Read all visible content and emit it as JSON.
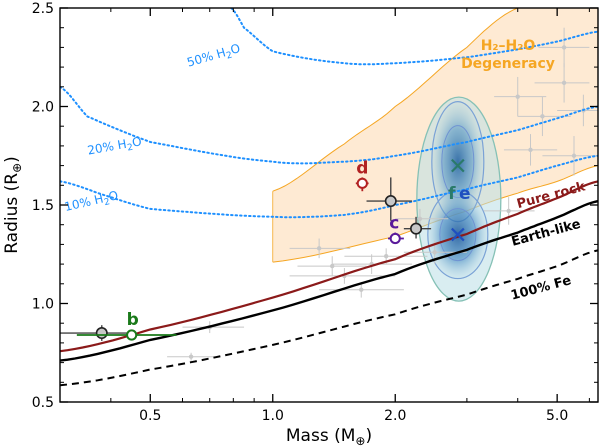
{
  "chart_data": {
    "type": "scatter",
    "xscale": "log",
    "xlim": [
      0.3,
      6.3
    ],
    "ylim": [
      0.5,
      2.5
    ],
    "xlabel": "Mass (M",
    "xlabel_sub": "⊕",
    "xlabel_end": ")",
    "ylabel": "Radius (R",
    "ylabel_sub": "⊕",
    "ylabel_end": ")",
    "xticks": [
      {
        "value": 0.5,
        "label": "0.5"
      },
      {
        "value": 1.0,
        "label": "1.0"
      },
      {
        "value": 2.0,
        "label": "2.0"
      },
      {
        "value": 5.0,
        "label": "5.0"
      }
    ],
    "yticks": [
      {
        "value": 0.5,
        "label": "0.5"
      },
      {
        "value": 1.0,
        "label": "1.0"
      },
      {
        "value": 1.5,
        "label": "1.5"
      },
      {
        "value": 2.0,
        "label": "2.0"
      },
      {
        "value": 2.5,
        "label": "2.5"
      }
    ],
    "colors": {
      "rock": "#8b1a1a",
      "earth": "#000000",
      "iron": "#000000",
      "water": "#1e90ff",
      "degeneracy": "#f5a623",
      "degeneracy_fill": "#fde3c4",
      "b": "#1a7a1a",
      "c": "#5a1a9a",
      "d": "#b22222",
      "e": "#1f4fbf",
      "f": "#2a7a6a",
      "gray_points": "#c8c8c8"
    },
    "curves": [
      {
        "name": "Pure rock",
        "x": [
          0.3,
          0.5,
          1.0,
          2.0,
          3.0,
          4.0,
          5.0,
          6.3
        ],
        "y": [
          0.758,
          0.868,
          1.03,
          1.225,
          1.353,
          1.455,
          1.535,
          1.62
        ]
      },
      {
        "name": "Earth-like",
        "x": [
          0.3,
          0.5,
          1.0,
          2.0,
          3.0,
          4.0,
          5.0,
          6.3
        ],
        "y": [
          0.71,
          0.815,
          0.965,
          1.15,
          1.272,
          1.36,
          1.437,
          1.52
        ]
      },
      {
        "name": "100% Fe",
        "x": [
          0.3,
          0.5,
          1.0,
          2.0,
          3.0,
          4.0,
          5.0,
          6.3
        ],
        "y": [
          0.585,
          0.665,
          0.79,
          0.945,
          1.045,
          1.125,
          1.19,
          1.27
        ]
      }
    ],
    "water_curves": [
      {
        "name": "50% H₂O",
        "label": "50% H",
        "label_sub": "2",
        "label_end": "O",
        "x": [
          0.79,
          0.85,
          1.0,
          1.5,
          2.0,
          3.0,
          4.0,
          5.0,
          6.3
        ],
        "y": [
          2.5,
          2.4,
          2.28,
          2.22,
          2.22,
          2.25,
          2.29,
          2.33,
          2.38
        ]
      },
      {
        "name": "20% H₂O",
        "label": "20% H",
        "label_sub": "2",
        "label_end": "O",
        "x": [
          0.3,
          0.35,
          0.5,
          1.0,
          1.5,
          2.0,
          3.0,
          4.0,
          5.0,
          6.3
        ],
        "y": [
          2.1,
          1.95,
          1.82,
          1.72,
          1.72,
          1.75,
          1.82,
          1.88,
          1.94,
          2.0
        ]
      },
      {
        "name": "10% H₂O",
        "label": "10% H",
        "label_sub": "2",
        "label_end": "O",
        "x": [
          0.3,
          0.4,
          0.5,
          1.0,
          1.5,
          2.0,
          3.0,
          4.0,
          5.0,
          6.3
        ],
        "y": [
          1.62,
          1.54,
          1.48,
          1.44,
          1.45,
          1.5,
          1.58,
          1.64,
          1.7,
          1.75
        ]
      }
    ],
    "degeneracy_region": {
      "label_line1": "H₂–H₂O",
      "label_line2": "Degeneracy",
      "upper": {
        "x": [
          1.0,
          1.5,
          2.0,
          3.0,
          4.0,
          5.0,
          5.5
        ],
        "y": [
          1.57,
          1.81,
          2.0,
          2.3,
          2.5,
          2.5,
          2.5
        ]
      },
      "lower": {
        "x": [
          1.0,
          2.0,
          3.0,
          4.0,
          5.0,
          6.3
        ],
        "y": [
          1.21,
          1.34,
          1.47,
          1.56,
          1.62,
          1.7
        ]
      }
    },
    "curve_labels": {
      "pure_rock": "Pure rock",
      "earth_like": "Earth-like",
      "iron": "100% Fe"
    },
    "planets": [
      {
        "id": "b",
        "label": "b",
        "mass": 0.45,
        "radius": 0.84,
        "mass_lo": 0.33,
        "mass_hi": 0.58,
        "radius_lo": 0.82,
        "radius_hi": 0.86,
        "color": "#1a7a1a"
      },
      {
        "id": "c",
        "label": "c",
        "mass": 2.0,
        "radius": 1.33,
        "mass_lo": 1.92,
        "mass_hi": 2.1,
        "radius_lo": 1.31,
        "radius_hi": 1.36,
        "color": "#5a1a9a"
      },
      {
        "id": "d",
        "label": "d",
        "mass": 1.66,
        "radius": 1.61,
        "mass_lo": 1.6,
        "mass_hi": 1.72,
        "radius_lo": 1.57,
        "radius_hi": 1.64,
        "color": "#b22222"
      },
      {
        "id": "e",
        "label": "e",
        "mass": 2.85,
        "radius": 1.35,
        "color": "#1f4fbf"
      },
      {
        "id": "f",
        "label": "f",
        "mass": 2.85,
        "radius": 1.7,
        "color": "#2a7a6a"
      }
    ],
    "previous_estimates": [
      {
        "mass": 0.38,
        "radius": 0.85,
        "mass_lo": 0.3,
        "mass_hi": 0.45,
        "radius_lo": 0.81,
        "radius_hi": 0.89
      },
      {
        "mass": 1.95,
        "radius": 1.52,
        "mass_lo": 1.7,
        "mass_hi": 2.2,
        "radius_lo": 1.42,
        "radius_hi": 1.64
      },
      {
        "mass": 2.25,
        "radius": 1.38,
        "mass_lo": 2.1,
        "mass_hi": 2.45,
        "radius_lo": 1.33,
        "radius_hi": 1.44
      }
    ],
    "background_points": [
      {
        "mass": 1.5,
        "radius": 1.14,
        "mass_lo": 1.1,
        "mass_hi": 2.0,
        "radius_lo": 1.1,
        "radius_hi": 1.18
      },
      {
        "mass": 1.75,
        "radius": 1.2,
        "mass_lo": 1.4,
        "mass_hi": 2.2,
        "radius_lo": 1.15,
        "radius_hi": 1.25
      },
      {
        "mass": 1.65,
        "radius": 1.07,
        "mass_lo": 1.3,
        "mass_hi": 2.1,
        "radius_lo": 1.03,
        "radius_hi": 1.11
      },
      {
        "mass": 1.9,
        "radius": 1.24,
        "mass_lo": 1.5,
        "mass_hi": 2.4,
        "radius_lo": 1.2,
        "radius_hi": 1.28
      },
      {
        "mass": 1.4,
        "radius": 1.19,
        "mass_lo": 1.15,
        "mass_hi": 1.7,
        "radius_lo": 1.14,
        "radius_hi": 1.24
      },
      {
        "mass": 2.5,
        "radius": 1.26,
        "mass_lo": 2.1,
        "mass_hi": 3.0,
        "radius_lo": 1.2,
        "radius_hi": 1.32
      },
      {
        "mass": 1.3,
        "radius": 1.28,
        "mass_lo": 1.1,
        "mass_hi": 1.55,
        "radius_lo": 1.23,
        "radius_hi": 1.33
      },
      {
        "mass": 0.7,
        "radius": 0.88,
        "mass_lo": 0.6,
        "mass_hi": 0.85,
        "radius_lo": 0.85,
        "radius_hi": 0.91
      },
      {
        "mass": 0.63,
        "radius": 0.73,
        "mass_lo": 0.55,
        "mass_hi": 0.72,
        "radius_lo": 0.71,
        "radius_hi": 0.75
      },
      {
        "mass": 4.0,
        "radius": 2.05,
        "mass_lo": 3.5,
        "mass_hi": 4.7,
        "radius_lo": 1.95,
        "radius_hi": 2.15
      },
      {
        "mass": 4.6,
        "radius": 1.95,
        "mass_lo": 4.0,
        "mass_hi": 5.4,
        "radius_lo": 1.85,
        "radius_hi": 2.05
      },
      {
        "mass": 5.2,
        "radius": 2.12,
        "mass_lo": 4.4,
        "mass_hi": 6.0,
        "radius_lo": 2.02,
        "radius_hi": 2.22
      },
      {
        "mass": 5.5,
        "radius": 1.75,
        "mass_lo": 4.6,
        "mass_hi": 6.3,
        "radius_lo": 1.65,
        "radius_hi": 1.85
      },
      {
        "mass": 4.3,
        "radius": 1.78,
        "mass_lo": 3.7,
        "mass_hi": 5.0,
        "radius_lo": 1.7,
        "radius_hi": 1.86
      },
      {
        "mass": 5.8,
        "radius": 1.98,
        "mass_lo": 5.0,
        "mass_hi": 6.3,
        "radius_lo": 1.9,
        "radius_hi": 2.06
      },
      {
        "mass": 3.8,
        "radius": 1.47,
        "mass_lo": 3.3,
        "mass_hi": 4.4,
        "radius_lo": 1.4,
        "radius_hi": 1.54
      },
      {
        "mass": 5.2,
        "radius": 2.3,
        "mass_lo": 4.5,
        "mass_hi": 6.0,
        "radius_lo": 2.2,
        "radius_hi": 2.4
      },
      {
        "mass": 2.3,
        "radius": 1.43,
        "mass_lo": 2.0,
        "mass_hi": 2.7,
        "radius_lo": 1.38,
        "radius_hi": 1.48
      }
    ],
    "contours": [
      {
        "for": "f",
        "center_mass": 2.85,
        "center_radius": 1.7
      },
      {
        "for": "e",
        "center_mass": 2.85,
        "center_radius": 1.36
      }
    ]
  }
}
